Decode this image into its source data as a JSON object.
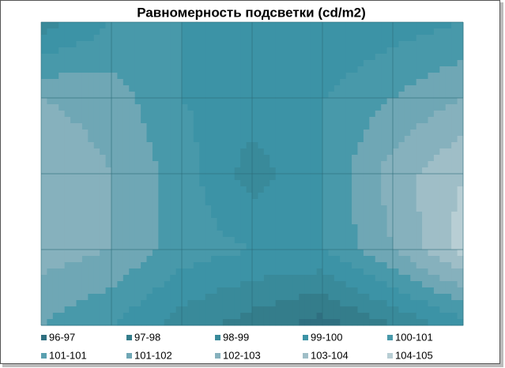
{
  "chart_data": {
    "type": "contour",
    "title": "Равномерность подсветки (cd/m2)",
    "z": [
      [
        98.5,
        100,
        100,
        99.5,
        99,
        99.5,
        100
      ],
      [
        102,
        101.5,
        100,
        99.5,
        100,
        101,
        102
      ],
      [
        103,
        102,
        100.5,
        98.5,
        100,
        102.5,
        104
      ],
      [
        102.5,
        102,
        100.5,
        100,
        100,
        102,
        104.5
      ],
      [
        101,
        100,
        98.5,
        97.5,
        96.5,
        98,
        99.5
      ]
    ],
    "series": [
      {
        "name": "96-97",
        "min": 96,
        "max": 97,
        "color": "#2f6f80"
      },
      {
        "name": "97-98",
        "min": 97,
        "max": 98,
        "color": "#347d8b"
      },
      {
        "name": "98-99",
        "min": 98,
        "max": 99,
        "color": "#398a9a"
      },
      {
        "name": "99-100",
        "min": 99,
        "max": 100,
        "color": "#3c93a6"
      },
      {
        "name": "100-101",
        "min": 100,
        "max": 101,
        "color": "#4899aa"
      },
      {
        "name": "101-101",
        "min": 101,
        "max": 101,
        "color": "#5aa0b0"
      },
      {
        "name": "101-102",
        "min": 101,
        "max": 102,
        "color": "#6fa7b5"
      },
      {
        "name": "102-103",
        "min": 102,
        "max": 103,
        "color": "#86b1bd"
      },
      {
        "name": "103-104",
        "min": 103,
        "max": 104,
        "color": "#9fbec7"
      },
      {
        "name": "104-105",
        "min": 104,
        "max": 105,
        "color": "#b8ced4"
      }
    ],
    "grid": true
  }
}
